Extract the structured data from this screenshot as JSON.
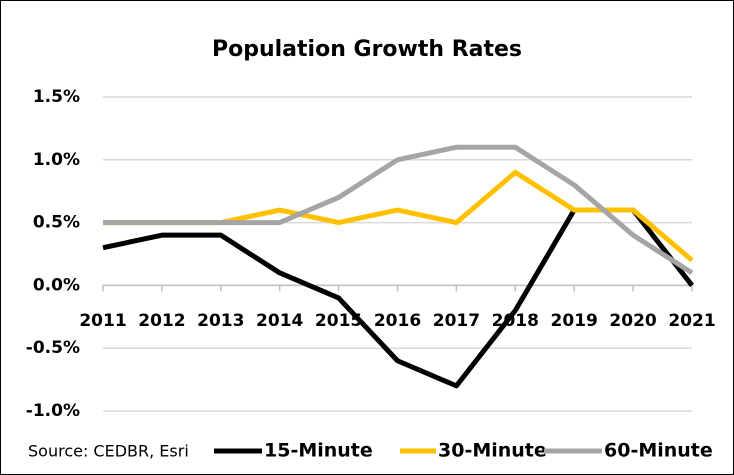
{
  "chart_data": {
    "type": "line",
    "title": "Population Growth Rates",
    "source": "Source: CEDBR, Esri",
    "categories": [
      "2011",
      "2012",
      "2013",
      "2014",
      "2015",
      "2016",
      "2017",
      "2018",
      "2019",
      "2020",
      "2021"
    ],
    "series": [
      {
        "name": "15-Minute",
        "color": "#000000",
        "values": [
          0.3,
          0.4,
          0.4,
          0.1,
          -0.1,
          -0.6,
          -0.8,
          -0.2,
          0.6,
          0.6,
          0.0
        ]
      },
      {
        "name": "30-Minute",
        "color": "#FFC000",
        "values": [
          0.5,
          0.5,
          0.5,
          0.6,
          0.5,
          0.6,
          0.5,
          0.9,
          0.6,
          0.6,
          0.2
        ]
      },
      {
        "name": "60-Minute",
        "color": "#A5A5A5",
        "values": [
          0.5,
          0.5,
          0.5,
          0.5,
          0.7,
          1.0,
          1.1,
          1.1,
          0.8,
          0.4,
          0.1
        ]
      }
    ],
    "ylim": [
      -1.0,
      1.5
    ],
    "yticks": [
      {
        "value": -1.0,
        "label": "-1.0%"
      },
      {
        "value": -0.5,
        "label": "-0.5%"
      },
      {
        "value": 0.0,
        "label": "0.0%"
      },
      {
        "value": 0.5,
        "label": "0.5%"
      },
      {
        "value": 1.0,
        "label": "1.0%"
      },
      {
        "value": 1.5,
        "label": "1.5%"
      }
    ],
    "grid": true
  }
}
